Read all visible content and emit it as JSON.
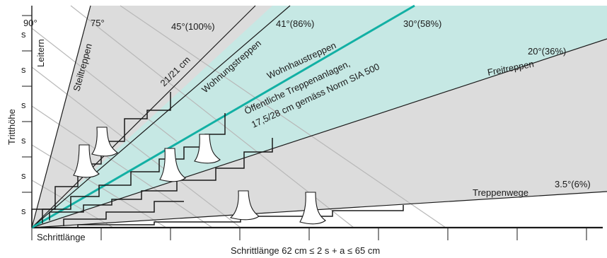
{
  "angles": {
    "a90": "90°",
    "a75": "75°",
    "a45": "45°(100%)",
    "a41": "41°(86%)",
    "a30": "30°(58%)",
    "a20": "20°(36%)",
    "a3_5": "3.5°(6%)"
  },
  "zones": {
    "leitern": "Leitern",
    "steiltreppen": "Steiltreppen",
    "twentyone": "21/21 cm",
    "wohnungstreppen": "Wohnungstreppen",
    "wohnhaustreppen": "Wohnhaustreppen",
    "oeffentlich_1": "Öffentliche Treppenanlagen,",
    "oeffentlich_2": "17,5/28 cm gemäss Norm SIA 500",
    "freitreppen": "Freitreppen",
    "treppenwege": "Treppenwege"
  },
  "axes": {
    "y_label": "Tritthöhe",
    "s": "s",
    "step_label": "Schrittlänge",
    "x_label": "Schrittlänge 62 cm ≤ 2 s + a ≤ 65 cm"
  },
  "colors": {
    "grey_zone": "#dcdcdc",
    "teal_zone": "#c6e8e4",
    "teal_line": "#12b0a4",
    "ink": "#1a1a1a",
    "guide": "#b8b8b8"
  }
}
